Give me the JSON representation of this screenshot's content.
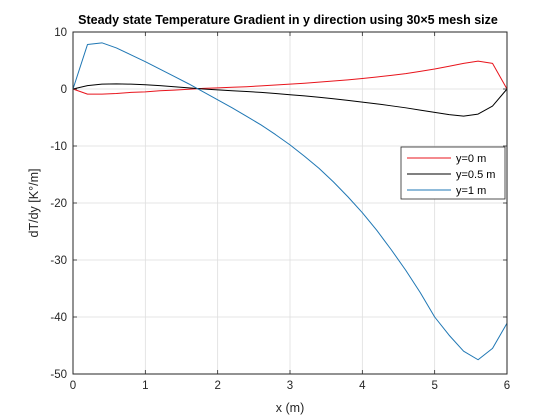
{
  "chart_data": {
    "type": "line",
    "title": "Steady state Temperature Gradient in y direction using 30×5 mesh size",
    "xlabel": "x (m)",
    "ylabel": "dT/dy [K°/m]",
    "xlim": [
      0,
      6
    ],
    "ylim": [
      -50,
      10
    ],
    "xticks": [
      0,
      1,
      2,
      3,
      4,
      5,
      6
    ],
    "yticks": [
      -50,
      -40,
      -30,
      -20,
      -10,
      0,
      10
    ],
    "grid": true,
    "legend_position": "right",
    "series": [
      {
        "name": "y=0 m",
        "color": "#e8141c",
        "x": [
          0,
          0.2,
          0.4,
          0.6,
          0.8,
          1.0,
          1.2,
          1.4,
          1.6,
          1.8,
          2.0,
          2.2,
          2.4,
          2.6,
          2.8,
          3.0,
          3.2,
          3.4,
          3.6,
          3.8,
          4.0,
          4.2,
          4.4,
          4.6,
          4.8,
          5.0,
          5.2,
          5.4,
          5.6,
          5.8,
          6.0
        ],
        "y": [
          0,
          -0.9,
          -0.9,
          -0.8,
          -0.6,
          -0.5,
          -0.3,
          -0.2,
          -0.05,
          0.1,
          0.2,
          0.3,
          0.4,
          0.55,
          0.7,
          0.85,
          1.0,
          1.2,
          1.4,
          1.6,
          1.85,
          2.1,
          2.4,
          2.7,
          3.1,
          3.5,
          4.0,
          4.5,
          4.9,
          4.5,
          0
        ]
      },
      {
        "name": "y=0.5 m",
        "color": "#000000",
        "x": [
          0,
          0.2,
          0.4,
          0.6,
          0.8,
          1.0,
          1.2,
          1.4,
          1.6,
          1.8,
          2.0,
          2.2,
          2.4,
          2.6,
          2.8,
          3.0,
          3.2,
          3.4,
          3.6,
          3.8,
          4.0,
          4.2,
          4.4,
          4.6,
          4.8,
          5.0,
          5.2,
          5.4,
          5.6,
          5.8,
          6.0
        ],
        "y": [
          0,
          0.6,
          0.85,
          0.9,
          0.85,
          0.75,
          0.6,
          0.4,
          0.2,
          0,
          -0.15,
          -0.3,
          -0.45,
          -0.6,
          -0.8,
          -1.0,
          -1.2,
          -1.45,
          -1.7,
          -2.0,
          -2.3,
          -2.6,
          -2.95,
          -3.3,
          -3.7,
          -4.1,
          -4.5,
          -4.75,
          -4.4,
          -3.0,
          0
        ]
      },
      {
        "name": "y=1 m",
        "color": "#1f77b4",
        "x": [
          0,
          0.2,
          0.4,
          0.6,
          0.8,
          1.0,
          1.2,
          1.4,
          1.6,
          1.8,
          2.0,
          2.2,
          2.4,
          2.6,
          2.8,
          3.0,
          3.2,
          3.4,
          3.6,
          3.8,
          4.0,
          4.2,
          4.4,
          4.6,
          4.8,
          5.0,
          5.2,
          5.4,
          5.6,
          5.8,
          6.0
        ],
        "y": [
          0,
          7.8,
          8.1,
          7.2,
          6.0,
          4.8,
          3.5,
          2.2,
          0.9,
          -0.5,
          -1.9,
          -3.3,
          -4.8,
          -6.3,
          -8.0,
          -9.8,
          -11.8,
          -13.9,
          -16.3,
          -18.9,
          -21.7,
          -24.8,
          -28.2,
          -31.8,
          -35.7,
          -40.0,
          -43.2,
          -46.0,
          -47.5,
          -45.5,
          -41.1
        ]
      }
    ]
  }
}
